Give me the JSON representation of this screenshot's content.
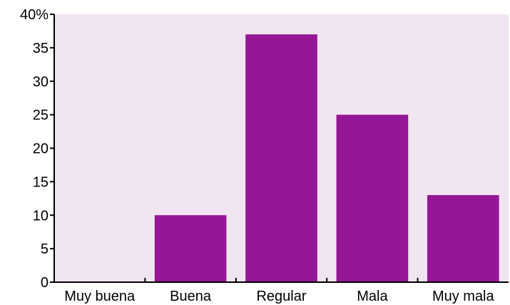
{
  "chart_data": {
    "type": "bar",
    "categories": [
      "Muy buena",
      "Buena",
      "Regular",
      "Mala",
      "Muy mala"
    ],
    "values": [
      0,
      10,
      37,
      25,
      13
    ],
    "y_ticks": [
      "0",
      "5",
      "10",
      "15",
      "20",
      "25",
      "30",
      "35",
      "40%"
    ],
    "ylim": [
      0,
      40
    ],
    "grid": false,
    "legend": "none",
    "colors": {
      "bar": "#951795",
      "plot_background": "#f2e5f2",
      "axis": "#000000"
    }
  }
}
